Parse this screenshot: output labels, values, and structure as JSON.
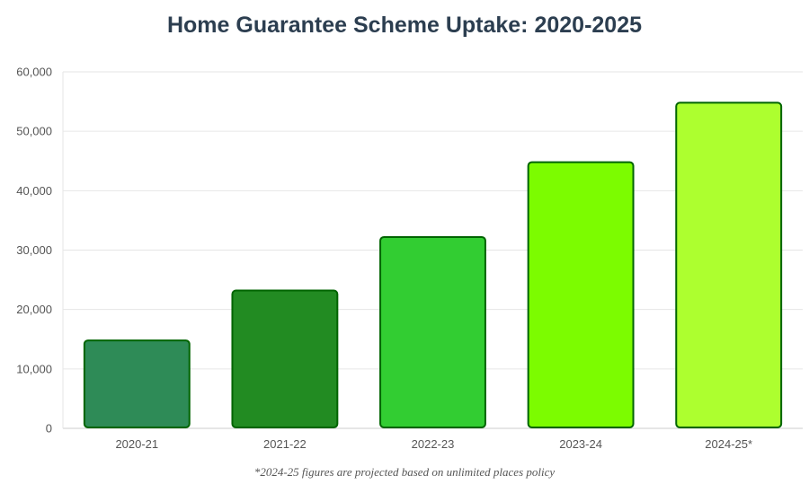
{
  "chart_data": {
    "type": "bar",
    "title": "Home Guarantee Scheme Uptake: 2020-2025",
    "categories": [
      "2020-21",
      "2021-22",
      "2022-23",
      "2023-24",
      "2024-25*"
    ],
    "values": [
      14800,
      23200,
      32200,
      44800,
      54800
    ],
    "colors": [
      "#2e8b57",
      "#228b22",
      "#32cd32",
      "#7cfc00",
      "#adff2f"
    ],
    "border_color": "#006400",
    "ylim": [
      0,
      60000
    ],
    "yticks": [
      0,
      10000,
      20000,
      30000,
      40000,
      50000,
      60000
    ],
    "ytick_labels": [
      "0",
      "10,000",
      "20,000",
      "30,000",
      "40,000",
      "50,000",
      "60,000"
    ],
    "xlabel": "",
    "ylabel": "",
    "grid": true,
    "legend": false,
    "footnote": "*2024-25 figures are projected based on unlimited places policy"
  }
}
